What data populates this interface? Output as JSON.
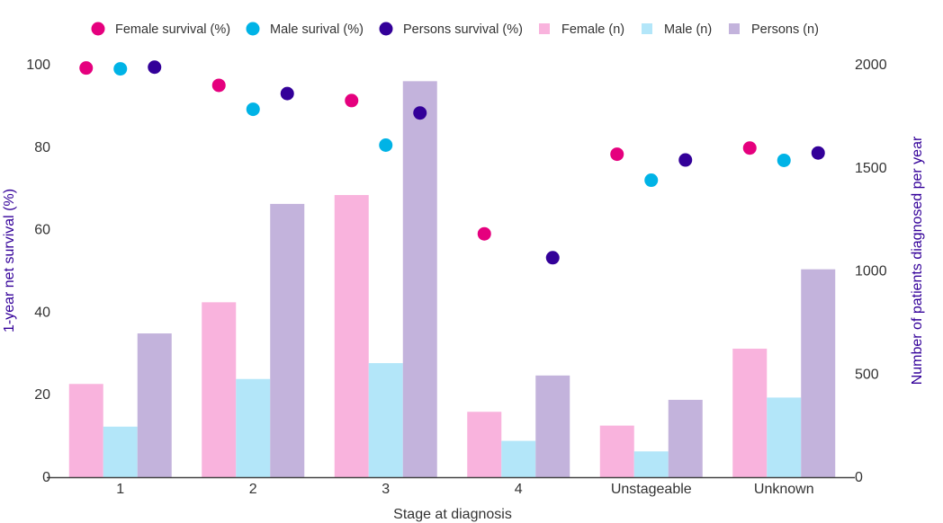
{
  "chart_data": {
    "type": "bar+scatter",
    "categories": [
      "1",
      "2",
      "3",
      "4",
      "Unstageable",
      "Unknown"
    ],
    "xlabel": "Stage at diagnosis",
    "ylabel_left": "1-year net survival (%)",
    "ylabel_right": "Number of patients diagnosed per year",
    "ylim_left": [
      0,
      100
    ],
    "ylim_right": [
      0,
      2000
    ],
    "yticks_left": [
      "0",
      "20",
      "40",
      "60",
      "80",
      "100"
    ],
    "yticks_right": [
      "0",
      "500",
      "1000",
      "1500",
      "2000"
    ],
    "legend_position": "top",
    "bar_series": [
      {
        "name": "Female (n)",
        "color": "#f9b3dd",
        "values": [
          452,
          848,
          1368,
          317,
          250,
          623
        ]
      },
      {
        "name": "Male (n)",
        "color": "#b3e6f9",
        "values": [
          245,
          476,
          553,
          176,
          125,
          386
        ]
      },
      {
        "name": "Persons (n)",
        "color": "#c3b3dc",
        "values": [
          697,
          1325,
          1920,
          493,
          375,
          1008
        ]
      }
    ],
    "point_series": [
      {
        "name": "Female survival (%)",
        "color": "#e5007e",
        "values": [
          99.2,
          95.0,
          91.3,
          59.0,
          78.3,
          79.8
        ]
      },
      {
        "name": "Male surival (%)",
        "color": "#00b3e6",
        "values": [
          99.0,
          89.2,
          80.5,
          null,
          72.0,
          76.8
        ]
      },
      {
        "name": "Persons survival (%)",
        "color": "#330099",
        "values": [
          99.4,
          93.0,
          88.3,
          53.2,
          76.9,
          78.6
        ]
      }
    ],
    "legend_order": [
      "Female survival (%)",
      "Male surival (%)",
      "Persons survival (%)",
      "Female (n)",
      "Male (n)",
      "Persons (n)"
    ],
    "axis_title_color": "#330099",
    "axis_line_color": "#444444"
  }
}
